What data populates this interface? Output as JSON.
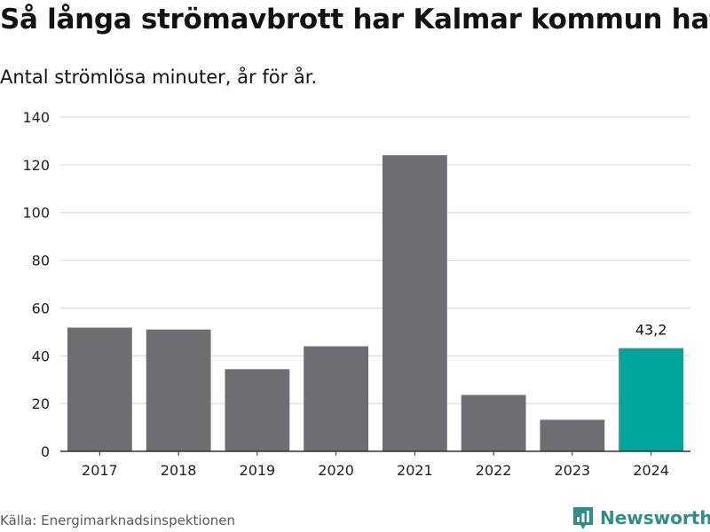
{
  "title": "Så långa strömavbrott har Kalmar kommun haft",
  "subtitle": "Antal strömlösa minuter, år för år.",
  "source": "Källa: Energimarknadsinspektionen",
  "brand": {
    "name": "Newsworthy",
    "logo_icon": "newsworthy-logo-icon",
    "color": "#2f8f87"
  },
  "colors": {
    "bar": "#6d6d72",
    "highlight": "#00a699",
    "grid": "#dddddd",
    "axis": "#333333",
    "tick_text": "#222222"
  },
  "chart_data": {
    "type": "bar",
    "title": "Så långa strömavbrott har Kalmar kommun haft",
    "subtitle": "Antal strömlösa minuter, år för år.",
    "xlabel": "",
    "ylabel": "",
    "categories": [
      "2017",
      "2018",
      "2019",
      "2020",
      "2021",
      "2022",
      "2023",
      "2024"
    ],
    "values": [
      51.8,
      51.0,
      34.4,
      44.0,
      124.0,
      23.6,
      13.2,
      43.2
    ],
    "ylim": [
      0,
      140
    ],
    "yticks": [
      0,
      20,
      40,
      60,
      80,
      100,
      120,
      140
    ],
    "grid": true,
    "highlight_index": 7,
    "annotations": [
      {
        "category": "2024",
        "label": "43,2"
      }
    ]
  }
}
